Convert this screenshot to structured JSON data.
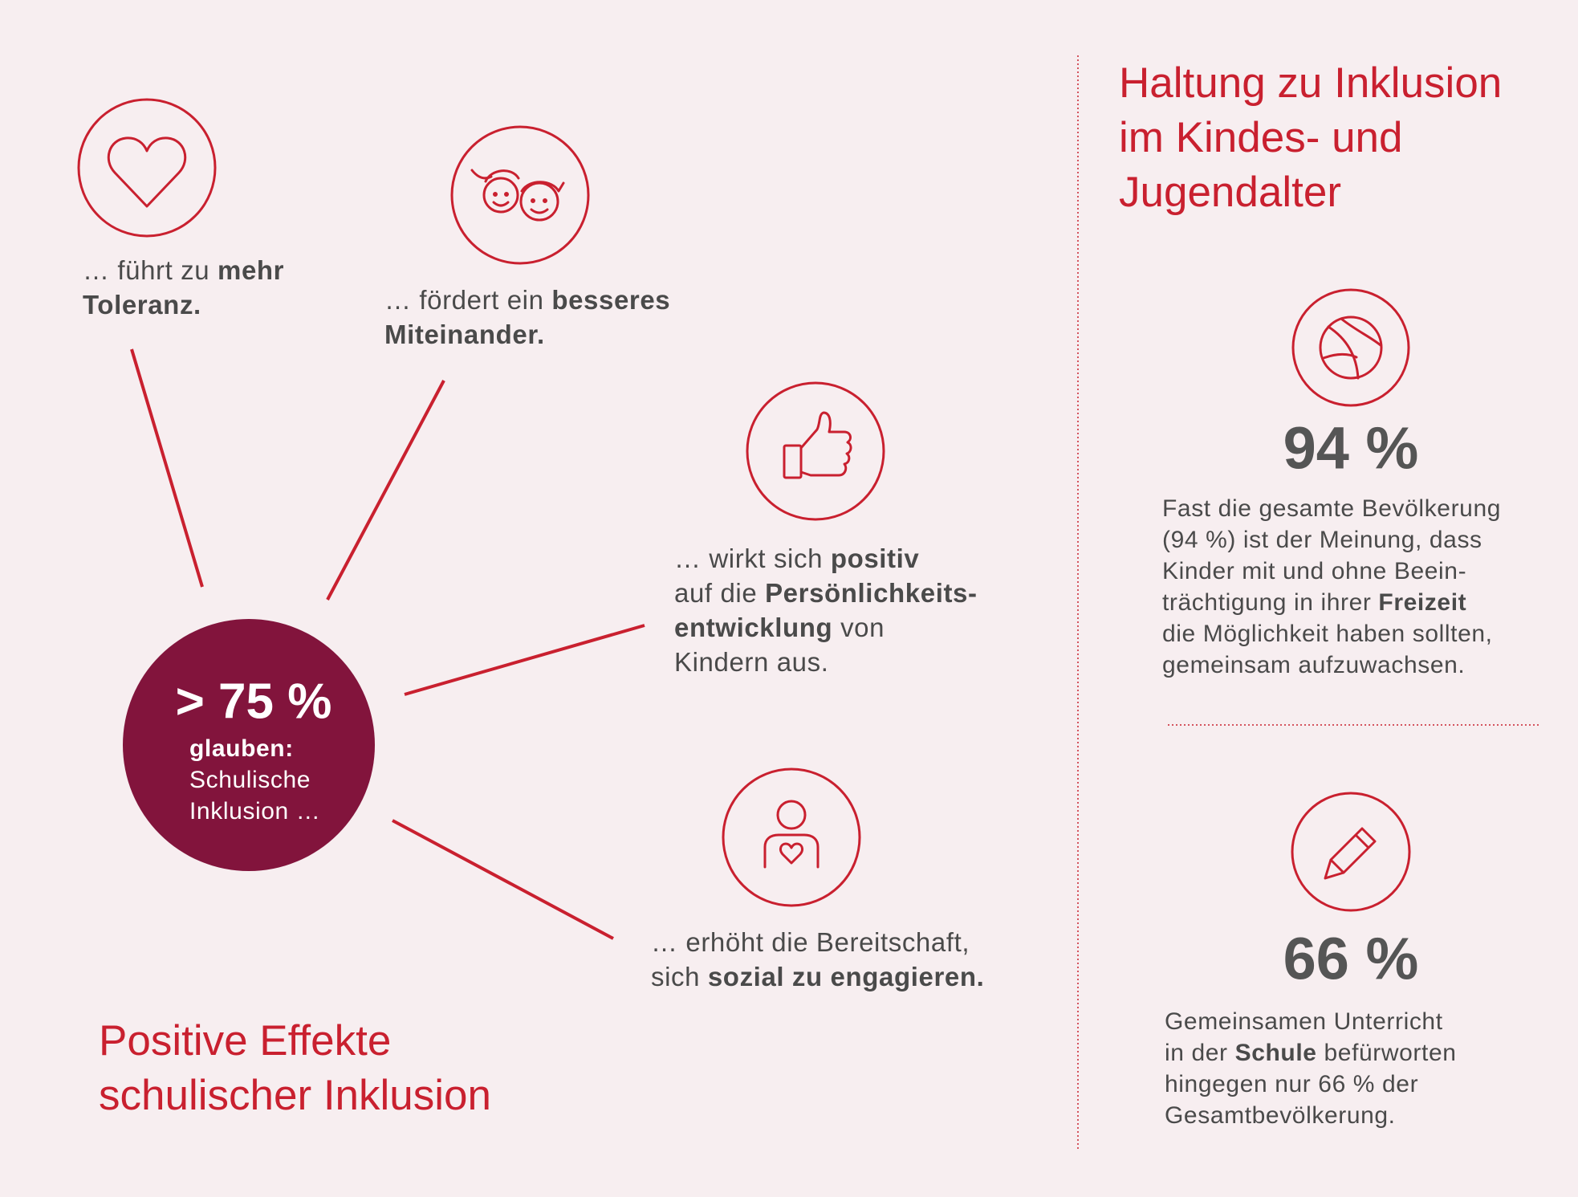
{
  "left_title": [
    "Positive Effekte",
    "schulischer Inklusion"
  ],
  "center": {
    "stat": "> 75 %",
    "lines": [
      [
        {
          "text": "glauben:",
          "bold": true
        }
      ],
      [
        {
          "text": "Schulische",
          "bold": false
        }
      ],
      [
        {
          "text": "Inklusion …",
          "bold": false
        }
      ]
    ]
  },
  "effects": [
    {
      "lines": [
        [
          {
            "text": "… führt zu ",
            "bold": false
          },
          {
            "text": "mehr",
            "bold": true
          }
        ],
        [
          {
            "text": "Toleranz.",
            "bold": true
          }
        ]
      ]
    },
    {
      "lines": [
        [
          {
            "text": "… fördert ein ",
            "bold": false
          },
          {
            "text": "besseres",
            "bold": true
          }
        ],
        [
          {
            "text": "Miteinander.",
            "bold": true
          }
        ]
      ]
    },
    {
      "lines": [
        [
          {
            "text": "… wirkt sich ",
            "bold": false
          },
          {
            "text": "positiv",
            "bold": true
          }
        ],
        [
          {
            "text": "auf die ",
            "bold": false
          },
          {
            "text": "Persönlichkeits-",
            "bold": true
          }
        ],
        [
          {
            "text": "entwicklung",
            "bold": true
          },
          {
            "text": " von",
            "bold": false
          }
        ],
        [
          {
            "text": "Kindern aus.",
            "bold": false
          }
        ]
      ]
    },
    {
      "lines": [
        [
          {
            "text": "… erhöht die Bereitschaft,",
            "bold": false
          }
        ],
        [
          {
            "text": "sich ",
            "bold": false
          },
          {
            "text": "sozial zu engagieren.",
            "bold": true
          }
        ]
      ]
    }
  ],
  "right_title": [
    "Haltung zu Inklusion",
    "im Kindes- und",
    "Jugendalter"
  ],
  "facts": [
    {
      "stat": "94 %",
      "lines": [
        [
          {
            "text": "Fast die gesamte Bevölkerung",
            "bold": false
          }
        ],
        [
          {
            "text": "(94 %) ist der Meinung, dass",
            "bold": false
          }
        ],
        [
          {
            "text": "Kinder mit und ohne Beein-",
            "bold": false
          }
        ],
        [
          {
            "text": "trächtigung in ihrer ",
            "bold": false
          },
          {
            "text": "Freizeit",
            "bold": true
          }
        ],
        [
          {
            "text": "die Möglichkeit haben sollten,",
            "bold": false
          }
        ],
        [
          {
            "text": "gemeinsam aufzuwachsen.",
            "bold": false
          }
        ]
      ]
    },
    {
      "stat": "66 %",
      "lines": [
        [
          {
            "text": "Gemeinsamen Unterricht",
            "bold": false
          }
        ],
        [
          {
            "text": "in der ",
            "bold": false
          },
          {
            "text": "Schule",
            "bold": true
          },
          {
            "text": " befürworten",
            "bold": false
          }
        ],
        [
          {
            "text": "hingegen nur 66 % der",
            "bold": false
          }
        ],
        [
          {
            "text": "Gesamtbevölkerung.",
            "bold": false
          }
        ]
      ]
    }
  ]
}
